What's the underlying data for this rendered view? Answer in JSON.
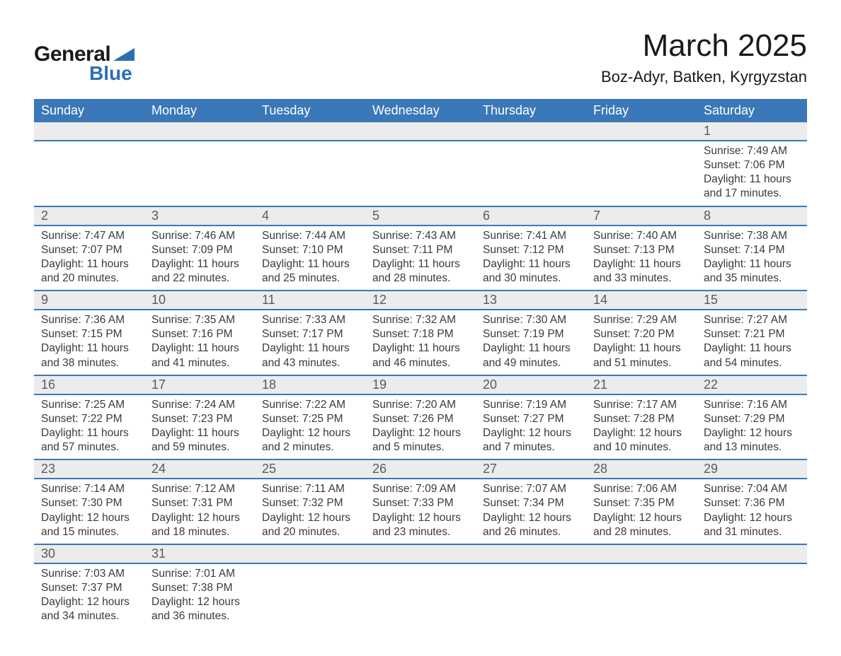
{
  "brand": {
    "line1": "General",
    "line2": "Blue",
    "text_color": "#1a1a1a",
    "accent_color": "#2b6fb3"
  },
  "title": "March 2025",
  "location": "Boz-Adyr, Batken, Kyrgyzstan",
  "colors": {
    "header_bg": "#3a78b7",
    "header_text": "#ffffff",
    "daynum_bg": "#ececec",
    "daynum_text": "#5a5a5a",
    "body_text": "#3a3a3a",
    "row_border": "#3a78b7",
    "page_bg": "#ffffff"
  },
  "fonts": {
    "title_size_pt": 33,
    "location_size_pt": 17,
    "header_size_pt": 14,
    "daynum_size_pt": 14,
    "cell_size_pt": 12
  },
  "day_headers": [
    "Sunday",
    "Monday",
    "Tuesday",
    "Wednesday",
    "Thursday",
    "Friday",
    "Saturday"
  ],
  "labels": {
    "sunrise": "Sunrise:",
    "sunset": "Sunset:",
    "daylight": "Daylight:"
  },
  "weeks": [
    [
      null,
      null,
      null,
      null,
      null,
      null,
      {
        "d": "1",
        "sr": "7:49 AM",
        "ss": "7:06 PM",
        "dl1": "11 hours",
        "dl2": "and 17 minutes."
      }
    ],
    [
      {
        "d": "2",
        "sr": "7:47 AM",
        "ss": "7:07 PM",
        "dl1": "11 hours",
        "dl2": "and 20 minutes."
      },
      {
        "d": "3",
        "sr": "7:46 AM",
        "ss": "7:09 PM",
        "dl1": "11 hours",
        "dl2": "and 22 minutes."
      },
      {
        "d": "4",
        "sr": "7:44 AM",
        "ss": "7:10 PM",
        "dl1": "11 hours",
        "dl2": "and 25 minutes."
      },
      {
        "d": "5",
        "sr": "7:43 AM",
        "ss": "7:11 PM",
        "dl1": "11 hours",
        "dl2": "and 28 minutes."
      },
      {
        "d": "6",
        "sr": "7:41 AM",
        "ss": "7:12 PM",
        "dl1": "11 hours",
        "dl2": "and 30 minutes."
      },
      {
        "d": "7",
        "sr": "7:40 AM",
        "ss": "7:13 PM",
        "dl1": "11 hours",
        "dl2": "and 33 minutes."
      },
      {
        "d": "8",
        "sr": "7:38 AM",
        "ss": "7:14 PM",
        "dl1": "11 hours",
        "dl2": "and 35 minutes."
      }
    ],
    [
      {
        "d": "9",
        "sr": "7:36 AM",
        "ss": "7:15 PM",
        "dl1": "11 hours",
        "dl2": "and 38 minutes."
      },
      {
        "d": "10",
        "sr": "7:35 AM",
        "ss": "7:16 PM",
        "dl1": "11 hours",
        "dl2": "and 41 minutes."
      },
      {
        "d": "11",
        "sr": "7:33 AM",
        "ss": "7:17 PM",
        "dl1": "11 hours",
        "dl2": "and 43 minutes."
      },
      {
        "d": "12",
        "sr": "7:32 AM",
        "ss": "7:18 PM",
        "dl1": "11 hours",
        "dl2": "and 46 minutes."
      },
      {
        "d": "13",
        "sr": "7:30 AM",
        "ss": "7:19 PM",
        "dl1": "11 hours",
        "dl2": "and 49 minutes."
      },
      {
        "d": "14",
        "sr": "7:29 AM",
        "ss": "7:20 PM",
        "dl1": "11 hours",
        "dl2": "and 51 minutes."
      },
      {
        "d": "15",
        "sr": "7:27 AM",
        "ss": "7:21 PM",
        "dl1": "11 hours",
        "dl2": "and 54 minutes."
      }
    ],
    [
      {
        "d": "16",
        "sr": "7:25 AM",
        "ss": "7:22 PM",
        "dl1": "11 hours",
        "dl2": "and 57 minutes."
      },
      {
        "d": "17",
        "sr": "7:24 AM",
        "ss": "7:23 PM",
        "dl1": "11 hours",
        "dl2": "and 59 minutes."
      },
      {
        "d": "18",
        "sr": "7:22 AM",
        "ss": "7:25 PM",
        "dl1": "12 hours",
        "dl2": "and 2 minutes."
      },
      {
        "d": "19",
        "sr": "7:20 AM",
        "ss": "7:26 PM",
        "dl1": "12 hours",
        "dl2": "and 5 minutes."
      },
      {
        "d": "20",
        "sr": "7:19 AM",
        "ss": "7:27 PM",
        "dl1": "12 hours",
        "dl2": "and 7 minutes."
      },
      {
        "d": "21",
        "sr": "7:17 AM",
        "ss": "7:28 PM",
        "dl1": "12 hours",
        "dl2": "and 10 minutes."
      },
      {
        "d": "22",
        "sr": "7:16 AM",
        "ss": "7:29 PM",
        "dl1": "12 hours",
        "dl2": "and 13 minutes."
      }
    ],
    [
      {
        "d": "23",
        "sr": "7:14 AM",
        "ss": "7:30 PM",
        "dl1": "12 hours",
        "dl2": "and 15 minutes."
      },
      {
        "d": "24",
        "sr": "7:12 AM",
        "ss": "7:31 PM",
        "dl1": "12 hours",
        "dl2": "and 18 minutes."
      },
      {
        "d": "25",
        "sr": "7:11 AM",
        "ss": "7:32 PM",
        "dl1": "12 hours",
        "dl2": "and 20 minutes."
      },
      {
        "d": "26",
        "sr": "7:09 AM",
        "ss": "7:33 PM",
        "dl1": "12 hours",
        "dl2": "and 23 minutes."
      },
      {
        "d": "27",
        "sr": "7:07 AM",
        "ss": "7:34 PM",
        "dl1": "12 hours",
        "dl2": "and 26 minutes."
      },
      {
        "d": "28",
        "sr": "7:06 AM",
        "ss": "7:35 PM",
        "dl1": "12 hours",
        "dl2": "and 28 minutes."
      },
      {
        "d": "29",
        "sr": "7:04 AM",
        "ss": "7:36 PM",
        "dl1": "12 hours",
        "dl2": "and 31 minutes."
      }
    ],
    [
      {
        "d": "30",
        "sr": "7:03 AM",
        "ss": "7:37 PM",
        "dl1": "12 hours",
        "dl2": "and 34 minutes."
      },
      {
        "d": "31",
        "sr": "7:01 AM",
        "ss": "7:38 PM",
        "dl1": "12 hours",
        "dl2": "and 36 minutes."
      },
      null,
      null,
      null,
      null,
      null
    ]
  ]
}
